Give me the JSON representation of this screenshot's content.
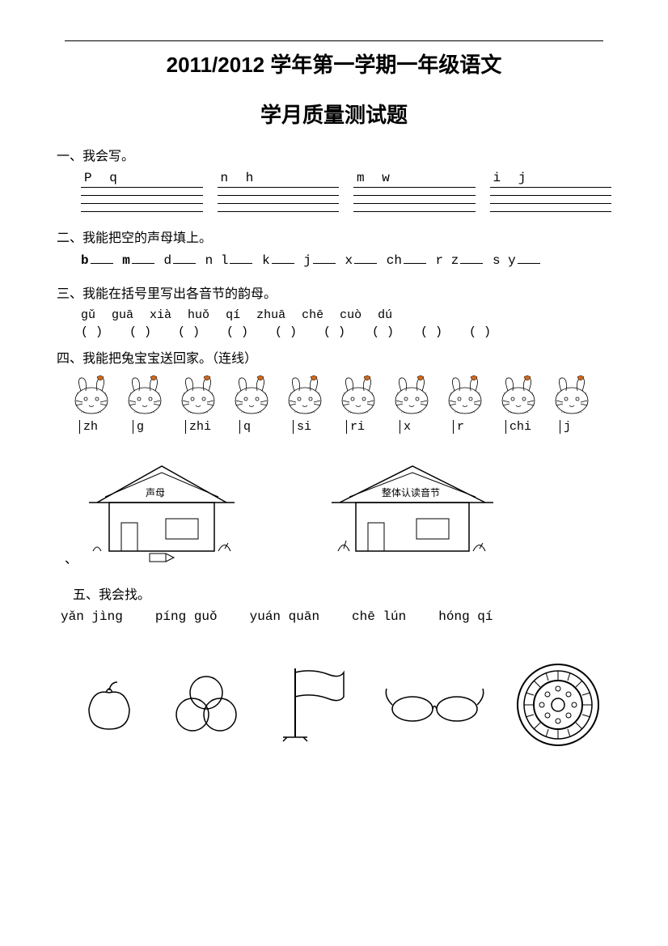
{
  "title_line1": "2011/2012 学年第一学期一年级语文",
  "title_line2": "学月质量测试题",
  "q1": {
    "label": "一、我会写。",
    "cols": [
      "P  q",
      "n  h",
      "m  w",
      "i  j"
    ]
  },
  "q2": {
    "label": "二、我能把空的声母填上。",
    "segments": [
      "b",
      "m",
      "d",
      "n  l",
      "k",
      "j",
      "x",
      "ch",
      "r  z",
      "s y"
    ]
  },
  "q3": {
    "label": "三、我能在括号里写出各音节的韵母。",
    "pinyin": [
      "gǔ",
      "guā",
      "xià",
      "huǒ",
      "qí",
      "zhuā",
      "chē",
      "cuò",
      "dú"
    ],
    "bracket": "(    )"
  },
  "q4": {
    "label": "四、我能把兔宝宝送回家。（连线）",
    "items": [
      "zh",
      "g",
      "zhi",
      "q",
      "si",
      "ri",
      "x",
      "r",
      "chi",
      "j"
    ],
    "house1_label": "声母",
    "house2_label": "整体认读音节"
  },
  "q5": {
    "label": "五、我会找。",
    "words": [
      "yǎn jìng",
      "píng guǒ",
      "yuán quān",
      "chē lún",
      "hóng qí"
    ]
  },
  "colors": {
    "text": "#000000",
    "bg": "#ffffff",
    "bow": "#d2691e"
  }
}
